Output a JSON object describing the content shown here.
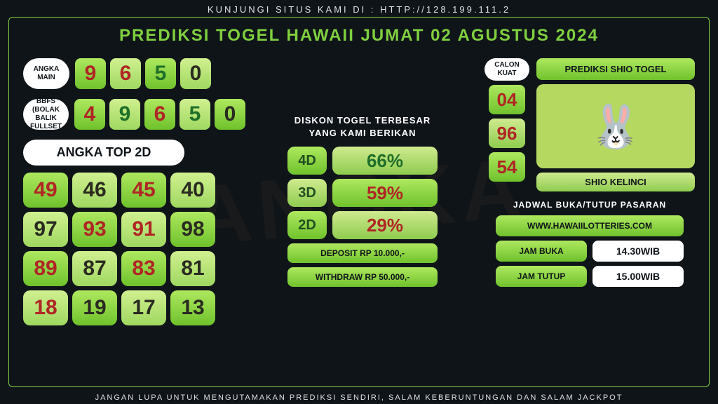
{
  "top_text": "KUNJUNGI SITUS KAMI DI : HTTP://128.199.111.2",
  "title": "PREDIKSI TOGEL HAWAII JUMAT 02 AGUSTUS 2024",
  "bottom_text": "JANGAN LUPA UNTUK MENGUTAMAKAN PREDIKSI SENDIRI, SALAM KEBERUNTUNGAN DAN SALAM JACKPOT",
  "watermark": "ANGKA",
  "angka_main": {
    "label": "ANGKA MAIN",
    "digits": [
      {
        "v": "9",
        "bg": "gA",
        "fg": "cRed"
      },
      {
        "v": "6",
        "bg": "gB",
        "fg": "cRed"
      },
      {
        "v": "5",
        "bg": "gA",
        "fg": "cGrn"
      },
      {
        "v": "0",
        "bg": "gB",
        "fg": "cDrk"
      }
    ]
  },
  "bbfs": {
    "label": "ANGKA BBFS (BOLAK BALIK FULLSET )",
    "digits": [
      {
        "v": "4",
        "bg": "gA",
        "fg": "cRed"
      },
      {
        "v": "9",
        "bg": "gB",
        "fg": "cGrn"
      },
      {
        "v": "6",
        "bg": "gA",
        "fg": "cRed"
      },
      {
        "v": "5",
        "bg": "gB",
        "fg": "cGrn"
      },
      {
        "v": "0",
        "bg": "gA",
        "fg": "cDrk"
      }
    ]
  },
  "top2d": {
    "label": "ANGKA TOP 2D",
    "cells": [
      {
        "v": "49",
        "bg": "gA",
        "fg": "cRed"
      },
      {
        "v": "46",
        "bg": "gB",
        "fg": "cDrk"
      },
      {
        "v": "45",
        "bg": "gA",
        "fg": "cRed"
      },
      {
        "v": "40",
        "bg": "gB",
        "fg": "cDrk"
      },
      {
        "v": "97",
        "bg": "gB",
        "fg": "cDrk"
      },
      {
        "v": "93",
        "bg": "gA",
        "fg": "cRed"
      },
      {
        "v": "91",
        "bg": "gB",
        "fg": "cRed"
      },
      {
        "v": "98",
        "bg": "gA",
        "fg": "cDrk"
      },
      {
        "v": "89",
        "bg": "gA",
        "fg": "cRed"
      },
      {
        "v": "87",
        "bg": "gB",
        "fg": "cDrk"
      },
      {
        "v": "83",
        "bg": "gA",
        "fg": "cRed"
      },
      {
        "v": "81",
        "bg": "gB",
        "fg": "cDrk"
      },
      {
        "v": "18",
        "bg": "gB",
        "fg": "cRed"
      },
      {
        "v": "19",
        "bg": "gA",
        "fg": "cDrk"
      },
      {
        "v": "17",
        "bg": "gB",
        "fg": "cDrk"
      },
      {
        "v": "13",
        "bg": "gA",
        "fg": "cDrk"
      }
    ]
  },
  "diskon": {
    "title1": "DISKON TOGEL TERBESAR",
    "title2": "YANG KAMI BERIKAN",
    "rows": [
      {
        "lbl": "4D",
        "val": "66%",
        "lbg": "gA",
        "vbg": "gC",
        "vfg": "cGrn"
      },
      {
        "lbl": "3D",
        "val": "59%",
        "lbg": "gC",
        "vbg": "gA",
        "vfg": "cRed"
      },
      {
        "lbl": "2D",
        "val": "29%",
        "lbg": "gA",
        "vbg": "gC",
        "vfg": "cRed"
      }
    ],
    "deposit": "DEPOSIT RP 10.000,-",
    "withdraw": "WITHDRAW RP 50.000,-"
  },
  "calon": {
    "label": "CALON KUAT",
    "nums": [
      {
        "v": "04",
        "bg": "gA",
        "fg": "cRed"
      },
      {
        "v": "96",
        "bg": "gC",
        "fg": "cRed"
      },
      {
        "v": "54",
        "bg": "gA",
        "fg": "cRed"
      }
    ]
  },
  "shio": {
    "title": "PREDIKSI SHIO TOGEL",
    "emoji": "🐰",
    "name": "SHIO KELINCI"
  },
  "schedule": {
    "title": "JADWAL BUKA/TUTUP PASARAN",
    "site": "WWW.HAWAIILOTTERIES.COM",
    "open_lbl": "JAM BUKA",
    "open_val": "14.30WIB",
    "close_lbl": "JAM TUTUP",
    "close_val": "15.00WIB"
  }
}
